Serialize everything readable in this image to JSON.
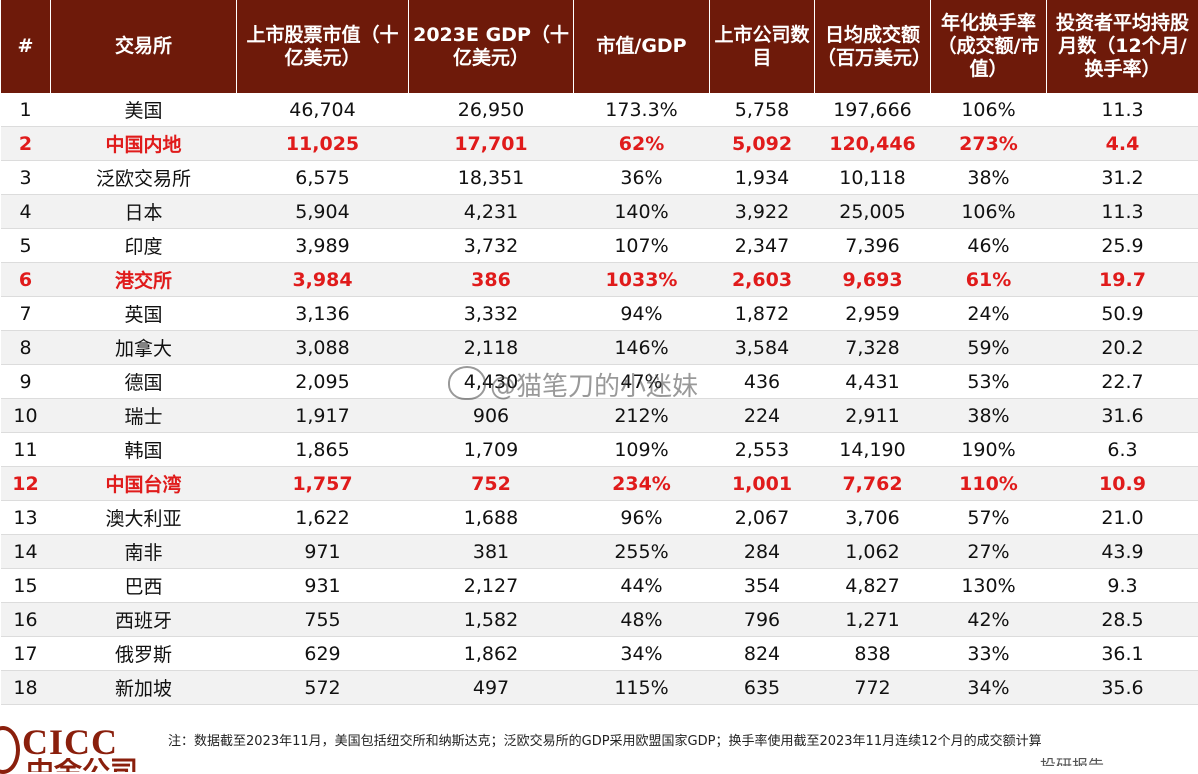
{
  "table": {
    "headers": [
      "#",
      "交易所",
      "上市股票市值（十亿美元）",
      "2023E GDP（十亿美元）",
      "市值/GDP",
      "上市公司数目",
      "日均成交额（百万美元）",
      "年化换手率（成交额/市值）",
      "投资者平均持股月数（12个月/换手率）"
    ],
    "rows": [
      {
        "rank": "1",
        "exchange": "美国",
        "market_cap": "46,704",
        "gdp": "26,950",
        "cap_gdp": "173.3%",
        "companies": "5,758",
        "daily_turnover": "197,666",
        "turnover_rate": "106%",
        "holding_months": "11.3",
        "highlight": false
      },
      {
        "rank": "2",
        "exchange": "中国内地",
        "market_cap": "11,025",
        "gdp": "17,701",
        "cap_gdp": "62%",
        "companies": "5,092",
        "daily_turnover": "120,446",
        "turnover_rate": "273%",
        "holding_months": "4.4",
        "highlight": true
      },
      {
        "rank": "3",
        "exchange": "泛欧交易所",
        "market_cap": "6,575",
        "gdp": "18,351",
        "cap_gdp": "36%",
        "companies": "1,934",
        "daily_turnover": "10,118",
        "turnover_rate": "38%",
        "holding_months": "31.2",
        "highlight": false
      },
      {
        "rank": "4",
        "exchange": "日本",
        "market_cap": "5,904",
        "gdp": "4,231",
        "cap_gdp": "140%",
        "companies": "3,922",
        "daily_turnover": "25,005",
        "turnover_rate": "106%",
        "holding_months": "11.3",
        "highlight": false
      },
      {
        "rank": "5",
        "exchange": "印度",
        "market_cap": "3,989",
        "gdp": "3,732",
        "cap_gdp": "107%",
        "companies": "2,347",
        "daily_turnover": "7,396",
        "turnover_rate": "46%",
        "holding_months": "25.9",
        "highlight": false
      },
      {
        "rank": "6",
        "exchange": "港交所",
        "market_cap": "3,984",
        "gdp": "386",
        "cap_gdp": "1033%",
        "companies": "2,603",
        "daily_turnover": "9,693",
        "turnover_rate": "61%",
        "holding_months": "19.7",
        "highlight": true
      },
      {
        "rank": "7",
        "exchange": "英国",
        "market_cap": "3,136",
        "gdp": "3,332",
        "cap_gdp": "94%",
        "companies": "1,872",
        "daily_turnover": "2,959",
        "turnover_rate": "24%",
        "holding_months": "50.9",
        "highlight": false
      },
      {
        "rank": "8",
        "exchange": "加拿大",
        "market_cap": "3,088",
        "gdp": "2,118",
        "cap_gdp": "146%",
        "companies": "3,584",
        "daily_turnover": "7,328",
        "turnover_rate": "59%",
        "holding_months": "20.2",
        "highlight": false
      },
      {
        "rank": "9",
        "exchange": "德国",
        "market_cap": "2,095",
        "gdp": "4,430",
        "cap_gdp": "47%",
        "companies": "436",
        "daily_turnover": "4,431",
        "turnover_rate": "53%",
        "holding_months": "22.7",
        "highlight": false
      },
      {
        "rank": "10",
        "exchange": "瑞士",
        "market_cap": "1,917",
        "gdp": "906",
        "cap_gdp": "212%",
        "companies": "224",
        "daily_turnover": "2,911",
        "turnover_rate": "38%",
        "holding_months": "31.6",
        "highlight": false
      },
      {
        "rank": "11",
        "exchange": "韩国",
        "market_cap": "1,865",
        "gdp": "1,709",
        "cap_gdp": "109%",
        "companies": "2,553",
        "daily_turnover": "14,190",
        "turnover_rate": "190%",
        "holding_months": "6.3",
        "highlight": false
      },
      {
        "rank": "12",
        "exchange": "中国台湾",
        "market_cap": "1,757",
        "gdp": "752",
        "cap_gdp": "234%",
        "companies": "1,001",
        "daily_turnover": "7,762",
        "turnover_rate": "110%",
        "holding_months": "10.9",
        "highlight": true
      },
      {
        "rank": "13",
        "exchange": "澳大利亚",
        "market_cap": "1,622",
        "gdp": "1,688",
        "cap_gdp": "96%",
        "companies": "2,067",
        "daily_turnover": "3,706",
        "turnover_rate": "57%",
        "holding_months": "21.0",
        "highlight": false
      },
      {
        "rank": "14",
        "exchange": "南非",
        "market_cap": "971",
        "gdp": "381",
        "cap_gdp": "255%",
        "companies": "284",
        "daily_turnover": "1,062",
        "turnover_rate": "27%",
        "holding_months": "43.9",
        "highlight": false
      },
      {
        "rank": "15",
        "exchange": "巴西",
        "market_cap": "931",
        "gdp": "2,127",
        "cap_gdp": "44%",
        "companies": "354",
        "daily_turnover": "4,827",
        "turnover_rate": "130%",
        "holding_months": "9.3",
        "highlight": false
      },
      {
        "rank": "16",
        "exchange": "西班牙",
        "market_cap": "755",
        "gdp": "1,582",
        "cap_gdp": "48%",
        "companies": "796",
        "daily_turnover": "1,271",
        "turnover_rate": "42%",
        "holding_months": "28.5",
        "highlight": false
      },
      {
        "rank": "17",
        "exchange": "俄罗斯",
        "market_cap": "629",
        "gdp": "1,862",
        "cap_gdp": "34%",
        "companies": "824",
        "daily_turnover": "838",
        "turnover_rate": "33%",
        "holding_months": "36.1",
        "highlight": false
      },
      {
        "rank": "18",
        "exchange": "新加坡",
        "market_cap": "572",
        "gdp": "497",
        "cap_gdp": "115%",
        "companies": "635",
        "daily_turnover": "772",
        "turnover_rate": "34%",
        "holding_months": "35.6",
        "highlight": false
      }
    ]
  },
  "watermark": "@猫笔刀的小迷妹",
  "footer": {
    "logo": "CICC",
    "logo_sub": "中金公司",
    "note": "注：数据截至2023年11月，美国包括纽交所和纳斯达克；泛欧交易所的GDP采用欧盟国家GDP；换手率使用截至2023年11月连续12个月的成交额计算",
    "corner": "投研报告"
  },
  "colors": {
    "header_bg": "#6e1a0a",
    "highlight_text": "#e01b1b",
    "logo": "#8a1f0c"
  }
}
